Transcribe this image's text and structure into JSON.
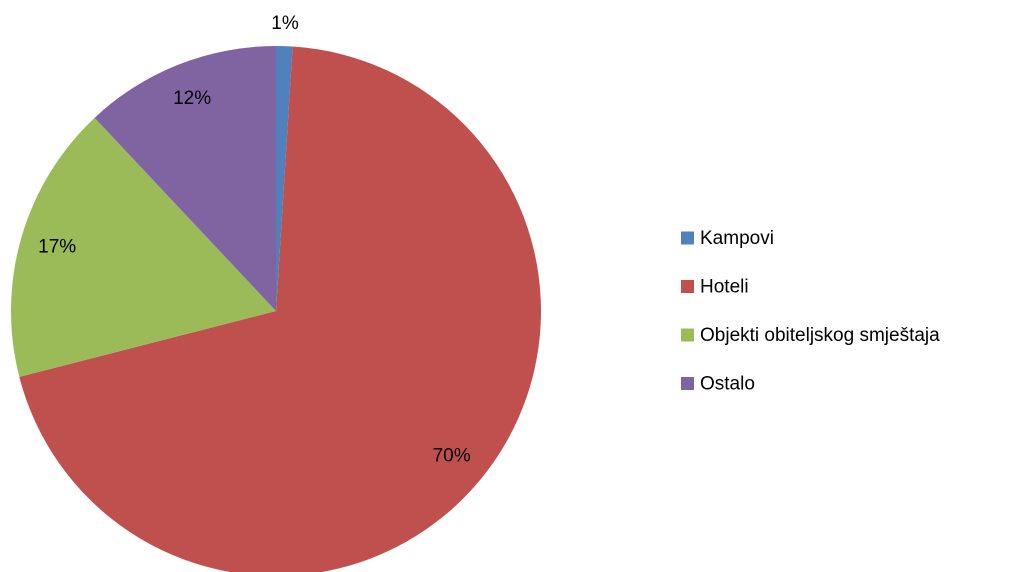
{
  "chart_data": {
    "type": "pie",
    "categories": [
      "Kampovi",
      "Hoteli",
      "Objekti obiteljskog smještaja",
      "Ostalo"
    ],
    "values": [
      1,
      70,
      17,
      12
    ],
    "value_labels": [
      "1%",
      "70%",
      "17%",
      "12%"
    ],
    "colors": [
      "#4f81bd",
      "#c0504d",
      "#9bbb59",
      "#8064a2"
    ],
    "legend": "right"
  }
}
